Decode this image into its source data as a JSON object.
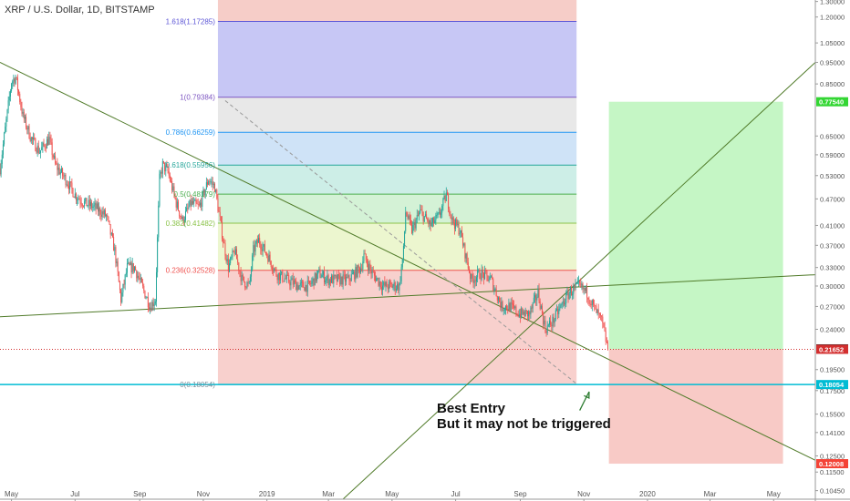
{
  "header": {
    "title": "XRP / U.S. Dollar, 1D, BITSTAMP"
  },
  "annotation": {
    "line1": "Best Entry",
    "line2": "But it may not be triggered"
  },
  "colors": {
    "up": "#26a69a",
    "down": "#ef5350",
    "trend": "#4f7a28",
    "horizontal_line": "#00bcd4",
    "target": "#33d633",
    "stop": "#f44336",
    "price_current": "#d32f2f"
  },
  "chart_data": {
    "type": "candlestick",
    "title": "XRP / U.S. Dollar, 1D, BITSTAMP",
    "y_scale": "log",
    "ylim": [
      0.1,
      1.31
    ],
    "xlim": [
      "2018-04-20",
      "2020-06-10"
    ],
    "x_tick_labels": [
      {
        "date": "2018-05-01",
        "label": "May"
      },
      {
        "date": "2018-07-01",
        "label": "Jul"
      },
      {
        "date": "2018-09-01",
        "label": "Sep"
      },
      {
        "date": "2018-11-01",
        "label": "Nov"
      },
      {
        "date": "2019-01-01",
        "label": "2019"
      },
      {
        "date": "2019-03-01",
        "label": "Mar"
      },
      {
        "date": "2019-05-01",
        "label": "May"
      },
      {
        "date": "2019-07-01",
        "label": "Jul"
      },
      {
        "date": "2019-09-01",
        "label": "Sep"
      },
      {
        "date": "2019-11-01",
        "label": "Nov"
      },
      {
        "date": "2020-01-01",
        "label": "2020"
      },
      {
        "date": "2020-03-01",
        "label": "Mar"
      },
      {
        "date": "2020-05-01",
        "label": "May"
      }
    ],
    "y_tick_labels": [
      "1.30000",
      "1.20000",
      "1.05000",
      "0.95000",
      "0.85000",
      "0.65000",
      "0.59000",
      "0.53000",
      "0.47000",
      "0.41000",
      "0.37000",
      "0.33000",
      "0.30000",
      "0.27000",
      "0.24000",
      "0.19500",
      "0.17500",
      "0.15500",
      "0.14100",
      "0.12500",
      "0.11500",
      "0.10450"
    ],
    "price_badges": [
      {
        "value": "0.77540",
        "kind": "target"
      },
      {
        "value": "0.21699",
        "kind": "current"
      },
      {
        "value": "0.21652",
        "kind": "entry"
      },
      {
        "value": "0.18054",
        "kind": "line"
      },
      {
        "value": "0.12008",
        "kind": "stop"
      }
    ],
    "fib": {
      "start": "2018-11-15",
      "end": "2019-10-25",
      "levels": [
        {
          "label": "1.618(1.17285)",
          "value": 1.17285,
          "color": "#5c55d6",
          "fill": "#c7c7f5"
        },
        {
          "label": "1(0.79384)",
          "value": 0.79384,
          "color": "#7e57c2",
          "fill": "#e8e8e8"
        },
        {
          "label": "0.786(0.66259)",
          "value": 0.66259,
          "color": "#2196f3",
          "fill": "#cfe3f7"
        },
        {
          "label": "0.618(0.55956)",
          "value": 0.55956,
          "color": "#26a69a",
          "fill": "#cdeee7"
        },
        {
          "label": "0.5(0.48179)",
          "value": 0.48179,
          "color": "#4caf50",
          "fill": "#d4f2d6"
        },
        {
          "label": "0.382(0.41482)",
          "value": 0.41482,
          "color": "#8bc34a",
          "fill": "#ecf6cf"
        },
        {
          "label": "0.236(0.32528)",
          "value": 0.32528,
          "color": "#ef5350",
          "fill": "#f8d0cd"
        },
        {
          "label": "0(0.18054)",
          "value": 0.18054,
          "color": "#78909c",
          "fill": "#f7d6d3"
        }
      ],
      "top_fill": "#f6cdc8"
    },
    "position": {
      "start": "2019-11-25",
      "end": "2020-05-10",
      "entry": 0.2165,
      "target": 0.7754,
      "stop": 0.12008
    },
    "horizontal_line": {
      "value": 0.18054
    },
    "current_price_line": {
      "value": 0.21652
    },
    "trendlines": [
      {
        "from": [
          "2018-04-20",
          0.95
        ],
        "to": [
          "2020-06-10",
          0.1222
        ]
      },
      {
        "from": [
          "2018-04-20",
          0.256
        ],
        "to": [
          "2020-06-10",
          0.318
        ]
      },
      {
        "from": [
          "2019-03-15",
          0.1
        ],
        "to": [
          "2020-06-10",
          0.95
        ]
      }
    ],
    "dashed_lines": [
      {
        "from": [
          "2018-11-22",
          0.78
        ],
        "to": [
          "2019-10-24",
          0.182
        ]
      }
    ],
    "arrow": {
      "from": [
        "2019-10-28",
        0.158
      ],
      "to": [
        "2019-11-06",
        0.174
      ]
    },
    "closes": [
      {
        "date": "2018-04-20",
        "value": 0.55
      },
      {
        "date": "2018-05-01",
        "value": 0.86
      },
      {
        "date": "2018-05-05",
        "value": 0.88
      },
      {
        "date": "2018-05-12",
        "value": 0.72
      },
      {
        "date": "2018-05-20",
        "value": 0.64
      },
      {
        "date": "2018-05-28",
        "value": 0.6
      },
      {
        "date": "2018-06-06",
        "value": 0.64
      },
      {
        "date": "2018-06-12",
        "value": 0.56
      },
      {
        "date": "2018-06-22",
        "value": 0.52
      },
      {
        "date": "2018-07-01",
        "value": 0.48
      },
      {
        "date": "2018-07-10",
        "value": 0.46
      },
      {
        "date": "2018-07-20",
        "value": 0.45
      },
      {
        "date": "2018-07-31",
        "value": 0.43
      },
      {
        "date": "2018-08-08",
        "value": 0.36
      },
      {
        "date": "2018-08-14",
        "value": 0.28
      },
      {
        "date": "2018-08-20",
        "value": 0.33
      },
      {
        "date": "2018-08-27",
        "value": 0.33
      },
      {
        "date": "2018-09-03",
        "value": 0.3
      },
      {
        "date": "2018-09-11",
        "value": 0.27
      },
      {
        "date": "2018-09-16",
        "value": 0.28
      },
      {
        "date": "2018-09-20",
        "value": 0.52
      },
      {
        "date": "2018-09-23",
        "value": 0.56
      },
      {
        "date": "2018-09-28",
        "value": 0.54
      },
      {
        "date": "2018-10-06",
        "value": 0.46
      },
      {
        "date": "2018-10-12",
        "value": 0.42
      },
      {
        "date": "2018-10-20",
        "value": 0.46
      },
      {
        "date": "2018-10-28",
        "value": 0.45
      },
      {
        "date": "2018-11-06",
        "value": 0.52
      },
      {
        "date": "2018-11-12",
        "value": 0.5
      },
      {
        "date": "2018-11-20",
        "value": 0.38
      },
      {
        "date": "2018-11-25",
        "value": 0.33
      },
      {
        "date": "2018-12-01",
        "value": 0.36
      },
      {
        "date": "2018-12-08",
        "value": 0.31
      },
      {
        "date": "2018-12-15",
        "value": 0.3
      },
      {
        "date": "2018-12-19",
        "value": 0.36
      },
      {
        "date": "2018-12-24",
        "value": 0.38
      },
      {
        "date": "2019-01-02",
        "value": 0.35
      },
      {
        "date": "2019-01-10",
        "value": 0.32
      },
      {
        "date": "2019-01-20",
        "value": 0.31
      },
      {
        "date": "2019-02-01",
        "value": 0.3
      },
      {
        "date": "2019-02-10",
        "value": 0.3
      },
      {
        "date": "2019-02-20",
        "value": 0.32
      },
      {
        "date": "2019-03-01",
        "value": 0.31
      },
      {
        "date": "2019-03-10",
        "value": 0.31
      },
      {
        "date": "2019-03-20",
        "value": 0.31
      },
      {
        "date": "2019-04-01",
        "value": 0.33
      },
      {
        "date": "2019-04-04",
        "value": 0.35
      },
      {
        "date": "2019-04-12",
        "value": 0.32
      },
      {
        "date": "2019-04-22",
        "value": 0.3
      },
      {
        "date": "2019-05-01",
        "value": 0.3
      },
      {
        "date": "2019-05-08",
        "value": 0.3
      },
      {
        "date": "2019-05-12",
        "value": 0.36
      },
      {
        "date": "2019-05-14",
        "value": 0.44
      },
      {
        "date": "2019-05-20",
        "value": 0.4
      },
      {
        "date": "2019-05-28",
        "value": 0.44
      },
      {
        "date": "2019-06-07",
        "value": 0.41
      },
      {
        "date": "2019-06-15",
        "value": 0.43
      },
      {
        "date": "2019-06-22",
        "value": 0.48
      },
      {
        "date": "2019-06-28",
        "value": 0.42
      },
      {
        "date": "2019-07-05",
        "value": 0.4
      },
      {
        "date": "2019-07-12",
        "value": 0.34
      },
      {
        "date": "2019-07-16",
        "value": 0.31
      },
      {
        "date": "2019-07-25",
        "value": 0.32
      },
      {
        "date": "2019-08-04",
        "value": 0.31
      },
      {
        "date": "2019-08-14",
        "value": 0.27
      },
      {
        "date": "2019-08-22",
        "value": 0.27
      },
      {
        "date": "2019-08-31",
        "value": 0.26
      },
      {
        "date": "2019-09-10",
        "value": 0.26
      },
      {
        "date": "2019-09-18",
        "value": 0.29
      },
      {
        "date": "2019-09-22",
        "value": 0.26
      },
      {
        "date": "2019-09-25",
        "value": 0.24
      },
      {
        "date": "2019-10-02",
        "value": 0.25
      },
      {
        "date": "2019-10-10",
        "value": 0.27
      },
      {
        "date": "2019-10-18",
        "value": 0.29
      },
      {
        "date": "2019-10-27",
        "value": 0.3
      },
      {
        "date": "2019-11-04",
        "value": 0.29
      },
      {
        "date": "2019-11-10",
        "value": 0.27
      },
      {
        "date": "2019-11-18",
        "value": 0.25
      },
      {
        "date": "2019-11-24",
        "value": 0.217
      }
    ]
  }
}
